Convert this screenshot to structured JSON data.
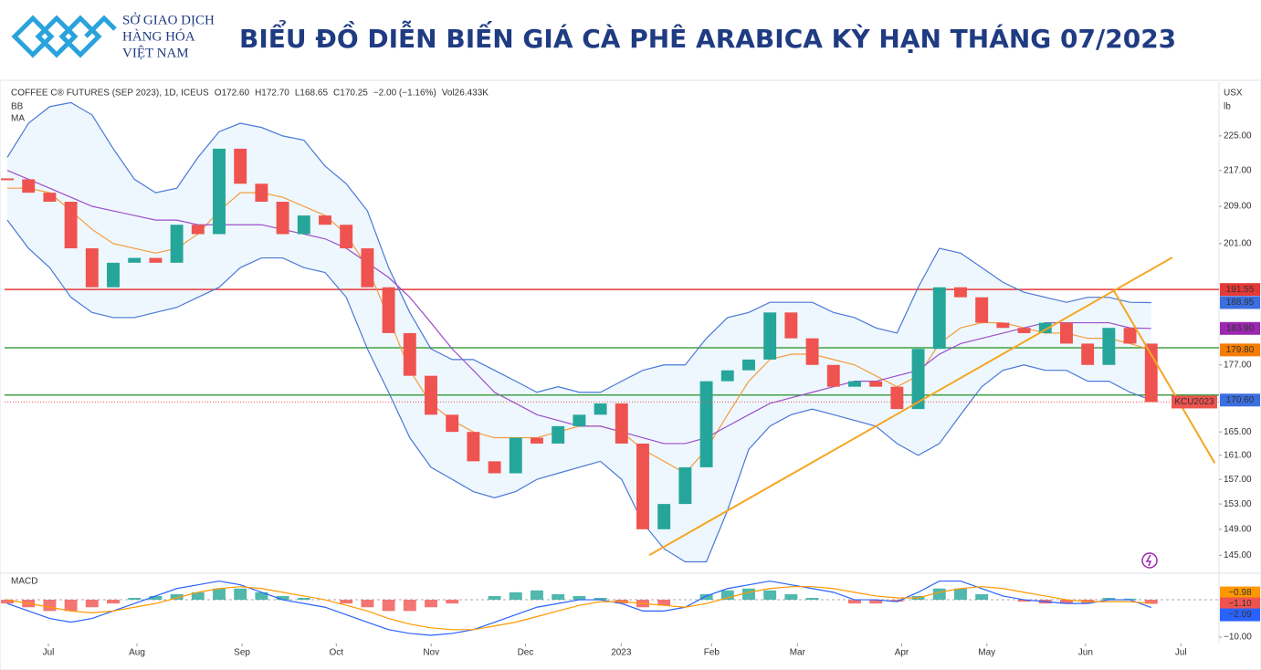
{
  "header": {
    "logo_lines": [
      "SỞ GIAO DỊCH",
      "HÀNG HÓA",
      "VIỆT NAM"
    ],
    "title": "BIỂU ĐỒ DIỄN BIẾN GIÁ CÀ PHÊ ARABICA KỲ HẠN THÁNG 07/2023"
  },
  "chart_data": [
    {
      "type": "candlestick",
      "info": [
        "COFFEE C® FUTURES (SEP 2023), 1D, ICEUS",
        "O172.60",
        "H172.70",
        "L168.65",
        "C170.25",
        "−2.00 (−1.16%)",
        "Vol26.433K"
      ],
      "indicators": [
        "BB",
        "MA"
      ],
      "unit": [
        "USX",
        "lb"
      ],
      "symbol_tag": "KCU2023",
      "log_scale": true,
      "up_color": "#26a69a",
      "down_color": "#ef5350",
      "x": [
        0,
        1,
        2,
        3,
        4,
        5,
        6,
        7,
        8,
        9,
        10,
        11,
        12,
        13,
        14,
        15,
        16,
        17,
        18,
        19,
        20,
        21,
        22,
        23,
        24,
        25,
        26,
        27,
        28,
        29,
        30,
        31,
        32,
        33,
        34,
        35,
        36,
        37,
        38,
        39,
        40,
        41,
        42,
        43,
        44,
        45,
        46,
        47,
        48,
        49,
        50,
        51,
        52,
        53,
        54
      ],
      "xlim": [
        -0.13,
        57.2
      ],
      "xticks": [
        {
          "value": 1.94,
          "label": "Jul"
        },
        {
          "value": 6.12,
          "label": "Aug"
        },
        {
          "value": 11.08,
          "label": "Sep"
        },
        {
          "value": 15.53,
          "label": "Oct"
        },
        {
          "value": 20.01,
          "label": "Nov"
        },
        {
          "value": 24.46,
          "label": "Dec"
        },
        {
          "value": 28.98,
          "label": "2023"
        },
        {
          "value": 33.25,
          "label": "Feb"
        },
        {
          "value": 37.3,
          "label": "Mar"
        },
        {
          "value": 42.22,
          "label": "Apr"
        },
        {
          "value": 46.24,
          "label": "May"
        },
        {
          "value": 50.9,
          "label": "Jun"
        },
        {
          "value": 55.4,
          "label": "Jul"
        }
      ],
      "ylim": [
        142.7,
        236.9
      ],
      "yticks": [
        {
          "value": 225,
          "label": "225.00"
        },
        {
          "value": 217,
          "label": "217.00"
        },
        {
          "value": 209,
          "label": "209.00"
        },
        {
          "value": 201,
          "label": "201.00"
        },
        {
          "value": 177,
          "label": "177.00"
        },
        {
          "value": 165,
          "label": "165.00"
        },
        {
          "value": 161,
          "label": "161.00"
        },
        {
          "value": 157,
          "label": "157.00"
        },
        {
          "value": 153,
          "label": "153.00"
        },
        {
          "value": 149,
          "label": "149.00"
        },
        {
          "value": 145,
          "label": "145.00"
        }
      ],
      "closes": [
        215,
        212,
        210,
        200,
        192,
        197,
        198,
        197,
        205,
        203,
        222,
        214,
        210,
        203,
        207,
        205,
        200,
        192,
        183,
        175,
        168,
        165,
        160,
        158,
        164,
        163,
        166,
        168,
        170,
        163,
        149,
        153,
        159,
        174,
        176,
        178,
        187,
        182,
        177,
        173,
        174,
        173,
        169,
        180,
        192,
        190,
        185,
        184,
        183,
        185,
        181,
        177,
        184,
        181,
        170.25
      ],
      "series": [
        {
          "name": "bb_upper",
          "color": "#4a78d6",
          "values": [
            220,
            228,
            232,
            233,
            230,
            222,
            215,
            212,
            213,
            220,
            226,
            228,
            227,
            225,
            224,
            218,
            214,
            208,
            196,
            187,
            180,
            178,
            178,
            176,
            174,
            172,
            173,
            172,
            172,
            174,
            176,
            177,
            177,
            182,
            186,
            187,
            189,
            189,
            189,
            187,
            186,
            184,
            183,
            192,
            200,
            199,
            196,
            193,
            191,
            190,
            189,
            190,
            190,
            189,
            188.95
          ]
        },
        {
          "name": "bb_lower",
          "color": "#4a78d6",
          "values": [
            206,
            200,
            196,
            190,
            187,
            186,
            186,
            187,
            188,
            190,
            192,
            196,
            198,
            198,
            196,
            195,
            190,
            180,
            172,
            164,
            159,
            157,
            155,
            154,
            155,
            157,
            158,
            159,
            160,
            157,
            150,
            146,
            144,
            144,
            152,
            162,
            166,
            168,
            169,
            168,
            167,
            166,
            163,
            161,
            163,
            168,
            173,
            176,
            177,
            176,
            176,
            174,
            174,
            172,
            170.6
          ]
        },
        {
          "name": "ma_fast",
          "color": "#f59c3c",
          "values": [
            213,
            213,
            212,
            208,
            204,
            201,
            200,
            199,
            200,
            203,
            208,
            212,
            212,
            211,
            209,
            207,
            203,
            196,
            186,
            176,
            170,
            167,
            165,
            164,
            164,
            164,
            165,
            166,
            166,
            165,
            162,
            160,
            158,
            162,
            168,
            174,
            178,
            179,
            179,
            178,
            177,
            175,
            173,
            175,
            181,
            184,
            185,
            185,
            184,
            183,
            183,
            182,
            182,
            181,
            179.8
          ]
        },
        {
          "name": "ma_slow",
          "color": "#9c4fc8",
          "values": [
            217,
            215,
            213,
            211,
            209,
            208,
            207,
            206,
            206,
            205,
            205,
            205,
            205,
            204,
            203,
            202,
            200,
            197,
            194,
            190,
            185,
            180,
            176,
            172,
            170,
            168,
            167,
            166,
            166,
            165,
            164,
            163,
            163,
            164,
            166,
            168,
            170,
            171,
            172,
            173,
            174,
            174,
            175,
            176,
            179,
            181,
            182,
            183,
            184,
            185,
            185,
            185,
            185,
            184,
            183.9
          ]
        }
      ],
      "hlines": [
        {
          "value": 191.55,
          "color": "#e53935"
        },
        {
          "value": 180.2,
          "color": "#43a047"
        },
        {
          "value": 171.5,
          "color": "#43a047"
        }
      ],
      "trendlines": [
        {
          "x": [
            30.3,
            55.0
          ],
          "y": [
            145,
            198.1
          ],
          "color": "#f5a623"
        },
        {
          "x": [
            52.2,
            57.0
          ],
          "y": [
            191.55,
            159.7
          ],
          "color": "#f5a623"
        }
      ],
      "price_tags": [
        {
          "value": 191.55,
          "label": "191.55",
          "color": "#e53935"
        },
        {
          "value": 188.95,
          "label": "188.95",
          "color": "#3b6fe0"
        },
        {
          "value": 183.9,
          "label": "183.90",
          "color": "#9c27b0"
        },
        {
          "value": 179.8,
          "label": "179.80",
          "color": "#f57c00"
        },
        {
          "value": 170.6,
          "label": "170.60",
          "color": "#3b6fe0"
        }
      ]
    },
    {
      "type": "macd",
      "title": "MACD",
      "ylim": [
        -11.7,
        6.6
      ],
      "yticks": [
        {
          "value": -10,
          "label": "−10.00"
        }
      ],
      "zero_line": 0,
      "hist": [
        -1,
        -2,
        -3,
        -3,
        -2,
        -1,
        0.5,
        1,
        1.5,
        2,
        3,
        3,
        2,
        1,
        0.5,
        0,
        -1,
        -2,
        -3,
        -3,
        -2,
        -1,
        0,
        1,
        2,
        2.5,
        1.5,
        1,
        0.5,
        -1,
        -2,
        -1.5,
        0,
        1.5,
        2.5,
        3,
        2.5,
        1.5,
        0.5,
        0,
        -1,
        -1,
        -0.5,
        1,
        3,
        3,
        1.5,
        0,
        -0.5,
        -1,
        -1,
        -0.8,
        0.5,
        0.3,
        -1.1
      ],
      "series": [
        {
          "name": "macd",
          "color": "#2962ff",
          "values": [
            -1,
            -3,
            -5,
            -6,
            -5,
            -3,
            -1,
            1,
            3,
            4,
            5,
            4,
            2,
            0,
            -1,
            -2,
            -4,
            -6,
            -8,
            -9,
            -9.5,
            -9,
            -8,
            -6,
            -4,
            -2,
            -1,
            0,
            0,
            -1,
            -3,
            -3,
            -2,
            1,
            3,
            4,
            5,
            4,
            3,
            2,
            0,
            0,
            -0.5,
            2,
            5,
            5,
            3,
            1,
            0,
            -0.5,
            -1,
            -1,
            0,
            0,
            -2.09
          ]
        },
        {
          "name": "signal",
          "color": "#ff9800",
          "values": [
            0,
            -1,
            -2,
            -3,
            -3.5,
            -3,
            -2,
            -1,
            0.5,
            2,
            3,
            3.5,
            3,
            2,
            1,
            0,
            -1.5,
            -3,
            -5,
            -6.5,
            -7.5,
            -8,
            -8,
            -7,
            -6,
            -4.5,
            -3,
            -1.5,
            -0.5,
            -0.5,
            -1,
            -1.5,
            -2,
            -1,
            0.5,
            2,
            3,
            3.5,
            3.5,
            3,
            2,
            1,
            0.5,
            0.5,
            2,
            3,
            3.5,
            3,
            2,
            1,
            0,
            -0.5,
            -0.5,
            -0.5,
            -0.98
          ]
        }
      ],
      "price_tags": [
        {
          "value": -0.98,
          "label": "−0.98",
          "color": "#ff9800"
        },
        {
          "value": -1.1,
          "label": "−1.10",
          "color": "#ef5350"
        },
        {
          "value": -2.09,
          "label": "−2.09",
          "color": "#2962ff"
        }
      ]
    }
  ]
}
